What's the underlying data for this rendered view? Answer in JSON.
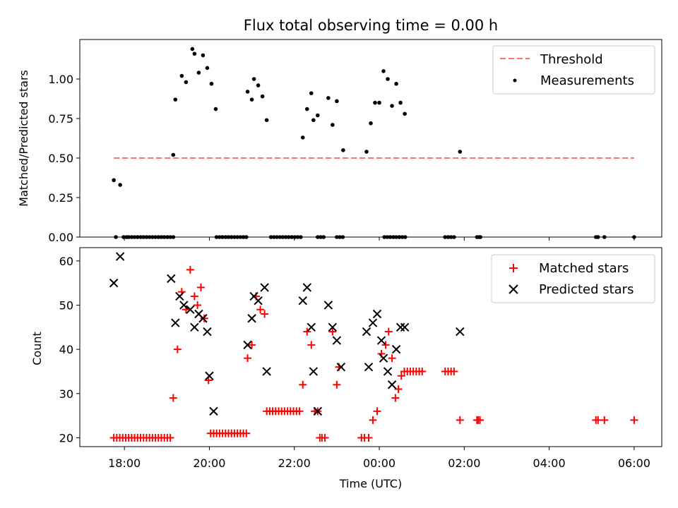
{
  "chart_data": [
    {
      "type": "scatter",
      "title": "Flux total observing time = 0.00 h",
      "xlabel": "",
      "ylabel": "Matched/Predicted stars",
      "xlim_hours": [
        16.95,
        30.65
      ],
      "ylim": [
        0,
        1.25
      ],
      "yticks": [
        0,
        0.25,
        0.5,
        0.75,
        1.0
      ],
      "ytick_labels": [
        "0.00",
        "0.25",
        "0.50",
        "0.75",
        "1.00"
      ],
      "legend_position": "upper-right",
      "threshold": {
        "name": "Threshold",
        "value": 0.5,
        "x_range_hours": [
          17.75,
          30.0
        ],
        "color": "#ff7070"
      },
      "series": [
        {
          "name": "Measurements",
          "color": "#000000",
          "x_hours": [
            17.75,
            17.9,
            19.15,
            19.2,
            19.35,
            19.45,
            19.6,
            19.65,
            19.75,
            19.85,
            19.95,
            20.05,
            20.15,
            20.9,
            21.0,
            21.05,
            21.15,
            21.25,
            21.35,
            22.2,
            22.3,
            22.4,
            22.45,
            22.55,
            22.8,
            22.9,
            23.0,
            23.15,
            23.7,
            23.8,
            23.9,
            24.0,
            24.1,
            24.2,
            24.3,
            24.4,
            24.5,
            24.6,
            25.9,
            17.8,
            17.98,
            18.05,
            18.1,
            18.17,
            18.24,
            18.31,
            18.38,
            18.45,
            18.52,
            18.59,
            18.66,
            18.73,
            18.8,
            18.87,
            18.94,
            19.01,
            19.08,
            19.15,
            20.17,
            20.24,
            20.31,
            20.38,
            20.45,
            20.52,
            20.59,
            20.66,
            20.73,
            20.8,
            20.87,
            21.45,
            21.52,
            21.59,
            21.66,
            21.73,
            21.8,
            21.87,
            21.94,
            22.01,
            22.08,
            22.15,
            22.55,
            22.62,
            22.69,
            23.0,
            23.07,
            23.14,
            24.12,
            24.19,
            24.26,
            24.33,
            24.4,
            24.47,
            24.54,
            24.61,
            25.55,
            25.62,
            25.69,
            25.76,
            26.3,
            26.35,
            26.38,
            29.1,
            29.15,
            29.3,
            30.0
          ],
          "y": [
            0.36,
            0.33,
            0.52,
            0.87,
            1.02,
            0.98,
            1.19,
            1.16,
            1.04,
            1.15,
            1.07,
            0.97,
            0.81,
            0.92,
            0.87,
            1.0,
            0.96,
            0.89,
            0.74,
            0.63,
            0.81,
            0.91,
            0.74,
            0.77,
            0.88,
            0.71,
            0.86,
            0.55,
            0.54,
            0.72,
            0.85,
            0.85,
            1.05,
            1.0,
            0.83,
            0.97,
            0.85,
            0.78,
            0.54,
            0,
            0,
            0,
            0,
            0,
            0,
            0,
            0,
            0,
            0,
            0,
            0,
            0,
            0,
            0,
            0,
            0,
            0,
            0,
            0,
            0,
            0,
            0,
            0,
            0,
            0,
            0,
            0,
            0,
            0,
            0,
            0,
            0,
            0,
            0,
            0,
            0,
            0,
            0,
            0,
            0,
            0,
            0,
            0,
            0,
            0,
            0,
            0,
            0,
            0,
            0,
            0,
            0,
            0,
            0,
            0,
            0,
            0,
            0,
            0,
            0,
            0,
            0,
            0,
            0,
            0
          ]
        }
      ]
    },
    {
      "type": "scatter",
      "title": "",
      "xlabel": "Time (UTC)",
      "ylabel": "Count",
      "xlim_hours": [
        16.95,
        30.65
      ],
      "ylim": [
        18,
        63
      ],
      "yticks": [
        20,
        30,
        40,
        50,
        60
      ],
      "ytick_labels": [
        "20",
        "30",
        "40",
        "50",
        "60"
      ],
      "xticks_hours": [
        18,
        20,
        22,
        24,
        26,
        28,
        30
      ],
      "xtick_labels": [
        "18:00",
        "20:00",
        "22:00",
        "00:00",
        "02:00",
        "04:00",
        "06:00"
      ],
      "legend_position": "upper-right",
      "series": [
        {
          "name": "Matched stars",
          "color": "#ff0000",
          "marker": "plus",
          "x_hours": [
            17.75,
            17.82,
            17.89,
            17.96,
            18.03,
            18.1,
            18.17,
            18.24,
            18.31,
            18.38,
            18.45,
            18.52,
            18.59,
            18.66,
            18.73,
            18.8,
            18.87,
            18.94,
            19.01,
            19.08,
            19.15,
            19.25,
            19.35,
            19.45,
            19.55,
            19.65,
            19.72,
            19.8,
            19.88,
            19.98,
            20.03,
            20.1,
            20.17,
            20.24,
            20.31,
            20.38,
            20.45,
            20.52,
            20.59,
            20.66,
            20.73,
            20.8,
            20.87,
            20.9,
            21.0,
            21.1,
            21.2,
            21.3,
            21.35,
            21.42,
            21.49,
            21.56,
            21.63,
            21.7,
            21.77,
            21.84,
            21.91,
            21.98,
            22.05,
            22.12,
            22.2,
            22.3,
            22.4,
            22.48,
            22.55,
            22.6,
            22.65,
            22.72,
            22.9,
            23.0,
            23.05,
            23.58,
            23.65,
            23.75,
            23.85,
            23.95,
            24.05,
            24.15,
            24.22,
            24.3,
            24.38,
            24.45,
            24.52,
            24.59,
            24.66,
            24.73,
            24.8,
            24.87,
            24.94,
            25.01,
            25.55,
            25.62,
            25.69,
            25.76,
            25.9,
            26.3,
            26.33,
            26.37,
            29.1,
            29.15,
            29.3,
            30.0
          ],
          "y": [
            20,
            20,
            20,
            20,
            20,
            20,
            20,
            20,
            20,
            20,
            20,
            20,
            20,
            20,
            20,
            20,
            20,
            20,
            20,
            20,
            29,
            40,
            53,
            49,
            58,
            52,
            50,
            54,
            47,
            33,
            21,
            21,
            21,
            21,
            21,
            21,
            21,
            21,
            21,
            21,
            21,
            21,
            21,
            38,
            41,
            52,
            49,
            48,
            26,
            26,
            26,
            26,
            26,
            26,
            26,
            26,
            26,
            26,
            26,
            26,
            32,
            44,
            41,
            26,
            26,
            20,
            20,
            20,
            44,
            32,
            36,
            20,
            20,
            20,
            24,
            26,
            39,
            41,
            44,
            38,
            29,
            31,
            34,
            35,
            35,
            35,
            35,
            35,
            35,
            35,
            35,
            35,
            35,
            35,
            24,
            24,
            24,
            24,
            24,
            24,
            24,
            24
          ]
        },
        {
          "name": "Predicted stars",
          "color": "#000000",
          "marker": "x",
          "x_hours": [
            17.75,
            17.9,
            19.1,
            19.2,
            19.3,
            19.4,
            19.55,
            19.65,
            19.75,
            19.85,
            19.95,
            20.0,
            20.1,
            20.9,
            21.0,
            21.05,
            21.15,
            21.3,
            21.35,
            22.2,
            22.3,
            22.4,
            22.45,
            22.55,
            22.8,
            22.9,
            23.0,
            23.1,
            23.7,
            23.75,
            23.85,
            23.95,
            24.05,
            24.1,
            24.2,
            24.3,
            24.4,
            24.5,
            24.6,
            25.9
          ],
          "y": [
            55,
            61,
            56,
            46,
            52,
            50,
            49,
            45,
            48,
            47,
            44,
            34,
            26,
            41,
            47,
            52,
            51,
            54,
            35,
            51,
            54,
            45,
            35,
            26,
            50,
            45,
            42,
            36,
            44,
            36,
            46,
            48,
            42,
            38,
            35,
            32,
            40,
            45,
            45,
            44
          ]
        }
      ]
    }
  ]
}
